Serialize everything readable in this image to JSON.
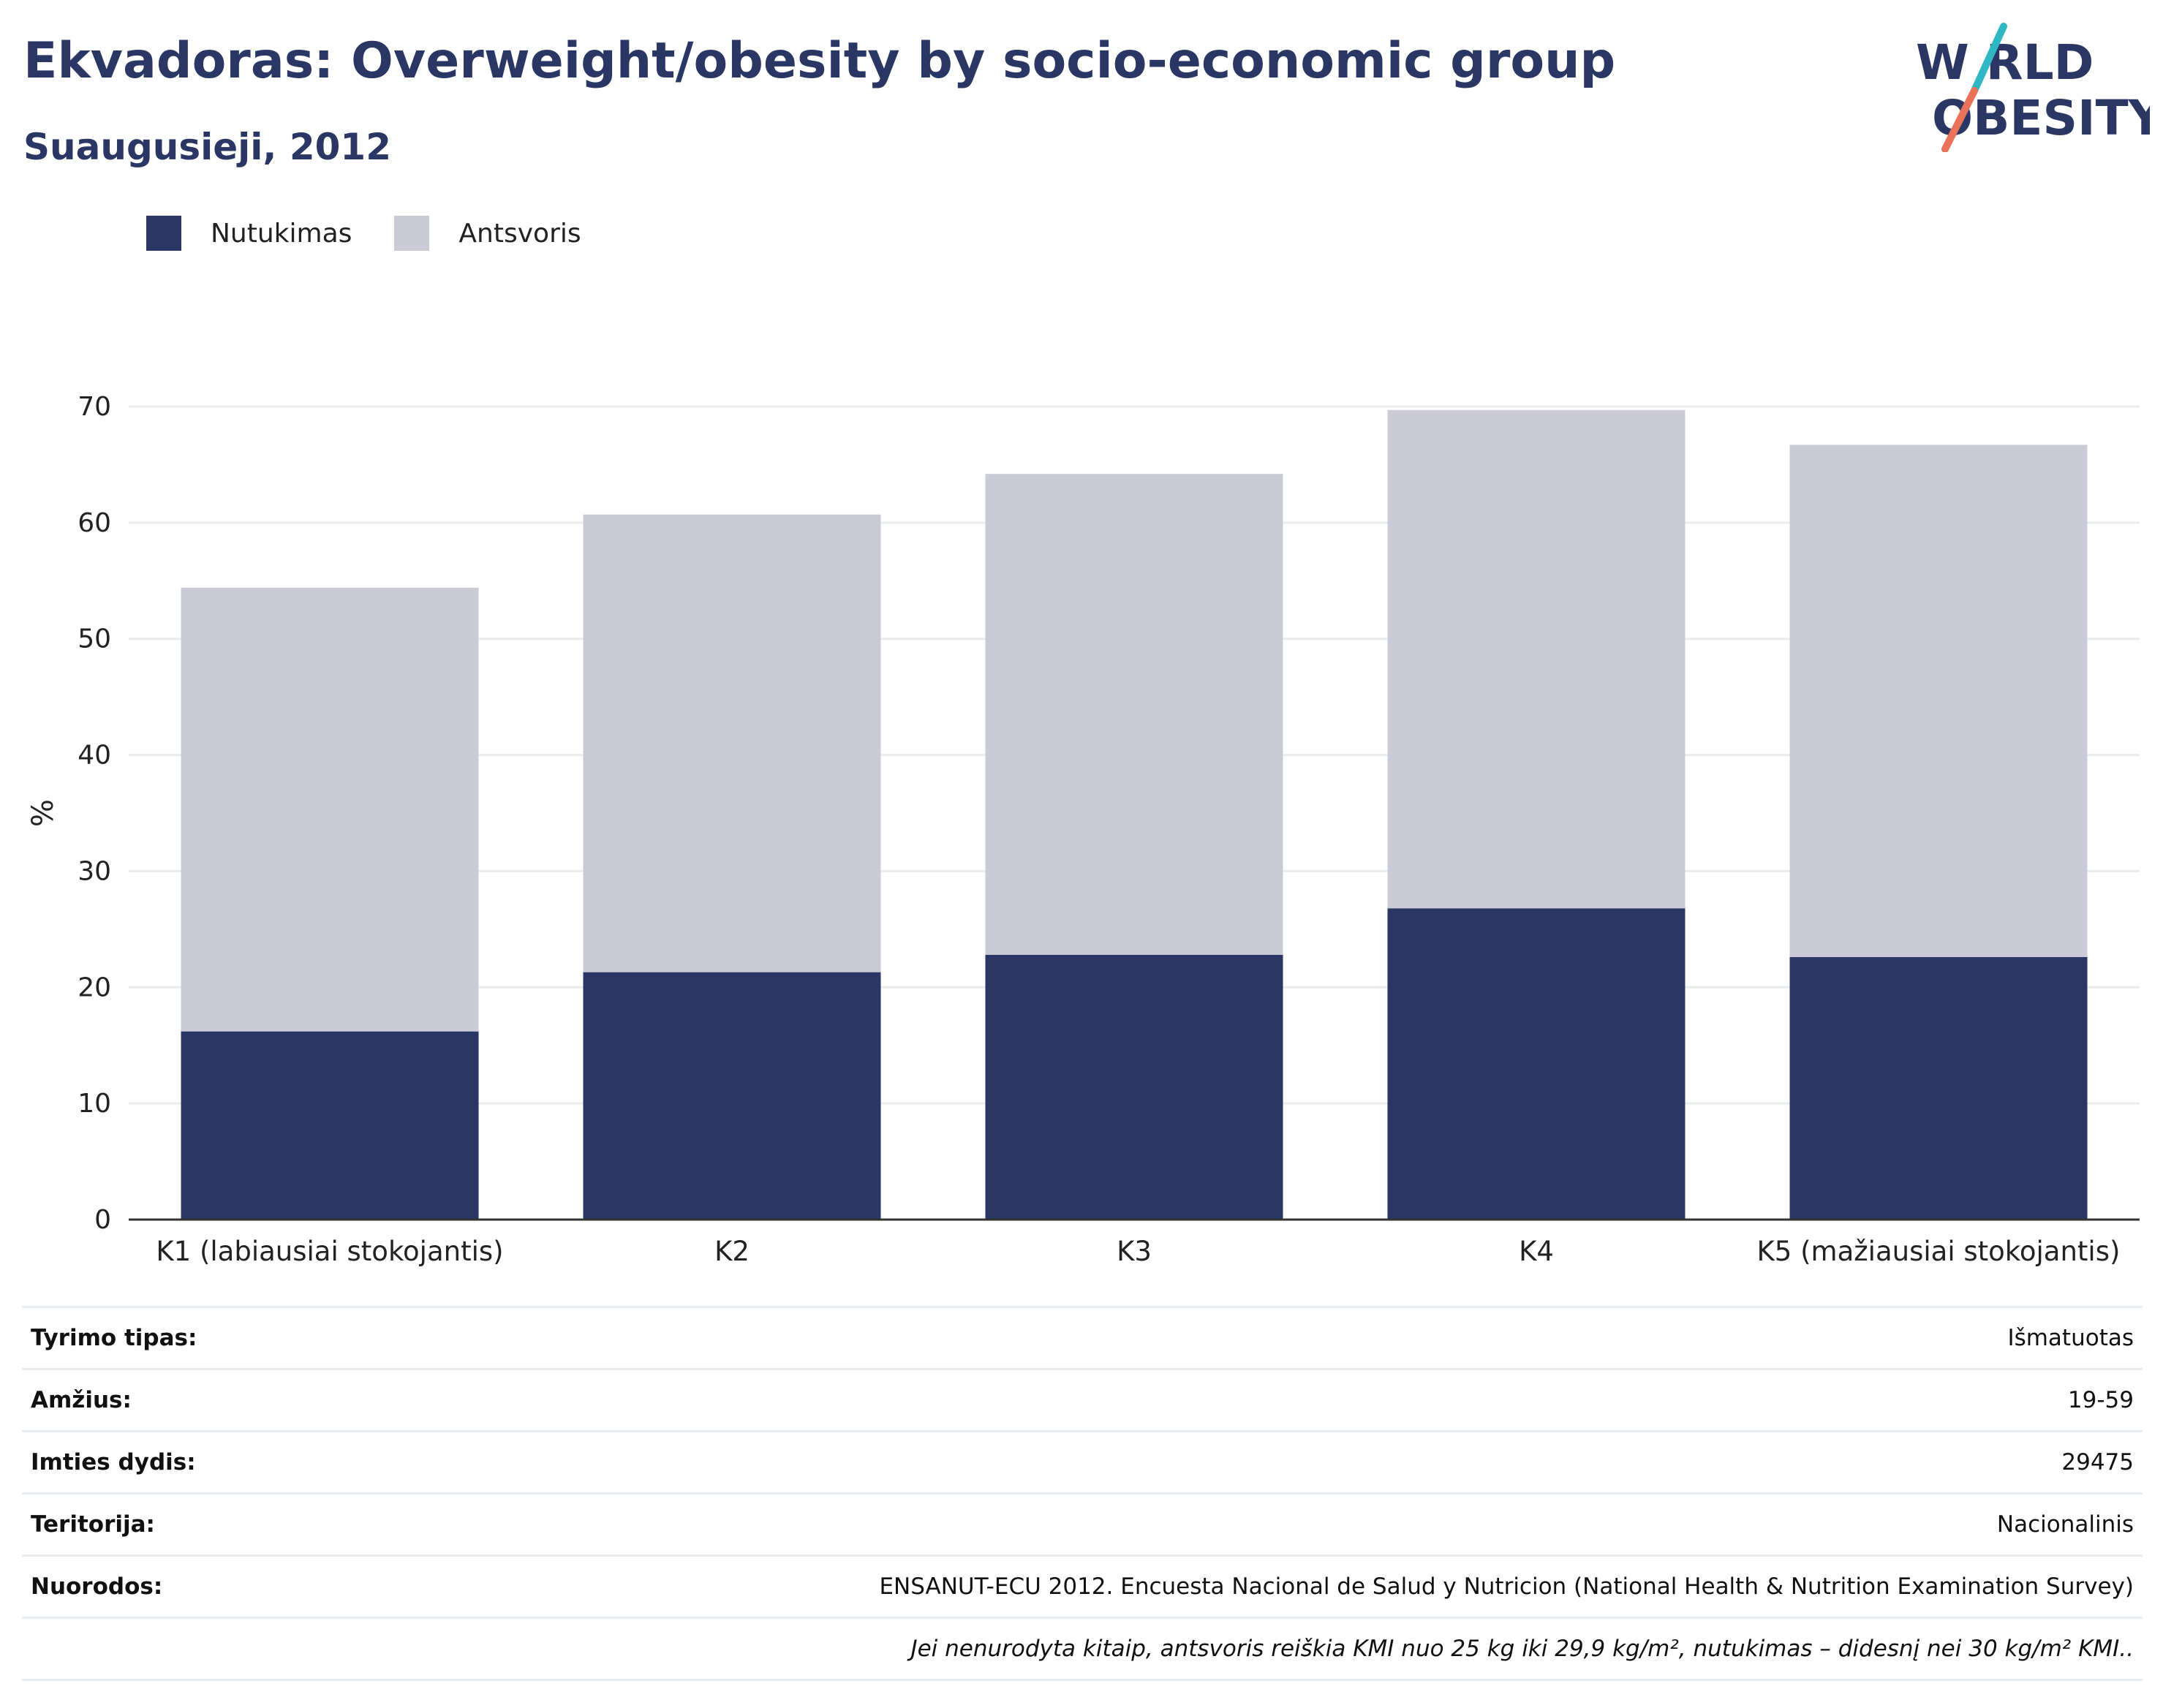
{
  "header": {
    "title": "Ekvadoras: Overweight/obesity by socio-economic group",
    "subtitle": "Suaugusieji, 2012"
  },
  "logo": {
    "line1": "W RLD",
    "line2": "OBESITY",
    "accent_colors": [
      "#2fb8c4",
      "#e8735a"
    ]
  },
  "colors": {
    "obesity": "#2a3664",
    "overweight": "#cacbd7",
    "grid": "#e9ecef",
    "axis": "#333333"
  },
  "legend": [
    {
      "label": "Nutukimas",
      "color": "#2a3664"
    },
    {
      "label": "Antsvoris",
      "color": "#cacbd7"
    }
  ],
  "chart_data": {
    "type": "bar",
    "stacked": true,
    "categories": [
      "K1 (labiausiai stokojantis)",
      "K2",
      "K3",
      "K4",
      "K5 (mažiausiai stokojantis)"
    ],
    "series": [
      {
        "name": "Nutukimas",
        "values": [
          16.2,
          21.3,
          22.8,
          26.8,
          22.6
        ]
      },
      {
        "name": "Antsvoris",
        "values": [
          38.2,
          39.4,
          41.4,
          42.9,
          44.1
        ]
      }
    ],
    "ylabel": "%",
    "ylim": [
      0,
      70
    ],
    "yticks": [
      "0",
      "10",
      "20",
      "30",
      "40",
      "50",
      "60",
      "70"
    ],
    "grid": true,
    "legend_position": "top-left"
  },
  "info": {
    "rows": [
      {
        "label": "Tyrimo tipas:",
        "value": "Išmatuotas"
      },
      {
        "label": "Amžius:",
        "value": "19-59"
      },
      {
        "label": "Imties dydis:",
        "value": "29475"
      },
      {
        "label": "Teritorija:",
        "value": "Nacionalinis"
      },
      {
        "label": "Nuorodos:",
        "value": "ENSANUT-ECU 2012. Encuesta Nacional de Salud y Nutricion (National Health & Nutrition Examination Survey)"
      }
    ],
    "footnote": "Jei nenurodyta kitaip, antsvoris reiškia KMI nuo 25 kg iki 29,9 kg/m², nutukimas – didesnį nei 30 kg/m² KMI.."
  }
}
